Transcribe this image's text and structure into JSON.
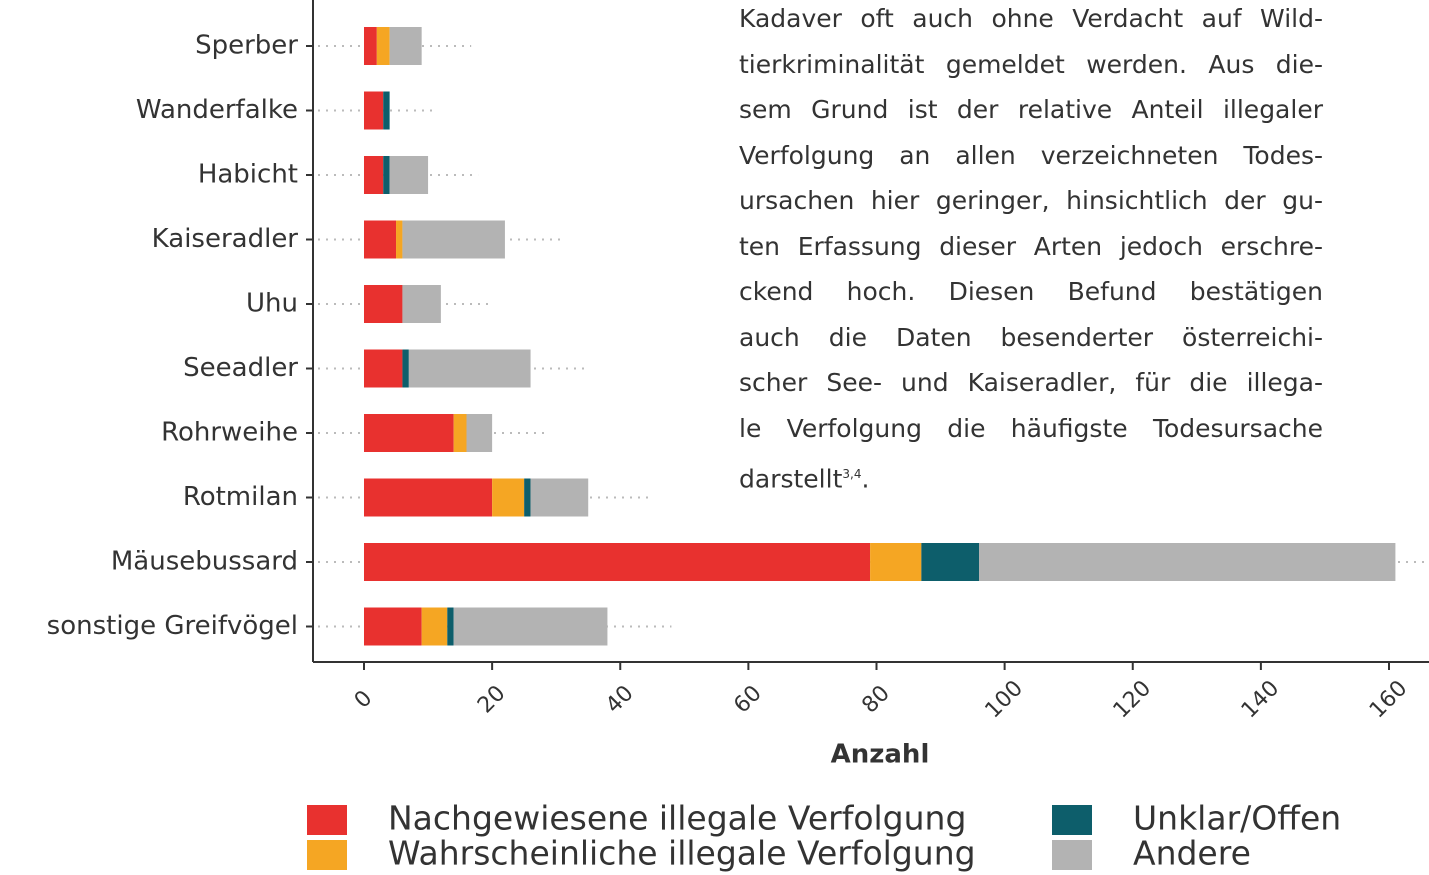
{
  "chart_data": {
    "type": "stacked-barh",
    "categories": [
      "Sperber",
      "Wanderfalke",
      "Habicht",
      "Kaiseradler",
      "Uhu",
      "Seeadler",
      "Rohrweihe",
      "Rotmilan",
      "Mäusebussard",
      "sonstige Greifvögel"
    ],
    "series": [
      {
        "name": "Nachgewiesene illegale Verfolgung",
        "color": "#e8312f",
        "values": [
          2,
          3,
          3,
          5,
          6,
          6,
          14,
          20,
          79,
          9
        ]
      },
      {
        "name": "Wahrscheinliche illegale Verfolgung",
        "color": "#f5a623",
        "values": [
          2,
          0,
          0,
          1,
          0,
          0,
          2,
          5,
          8,
          4
        ]
      },
      {
        "name": "Unklar/Offen",
        "color": "#0d5e6b",
        "values": [
          0,
          1,
          1,
          0,
          0,
          1,
          0,
          1,
          9,
          1
        ]
      },
      {
        "name": "Andere",
        "color": "#b3b3b3",
        "values": [
          5,
          0,
          6,
          16,
          6,
          19,
          4,
          9,
          65,
          24
        ]
      }
    ],
    "xlabel": "Anzahl",
    "xlim": [
      0,
      160
    ],
    "xticks": [
      0,
      20,
      40,
      60,
      80,
      100,
      120,
      140,
      160
    ]
  },
  "text": {
    "lines": [
      "Kadaver oft auch ohne Verdacht auf Wild-",
      "tierkriminalität gemeldet werden. Aus die-",
      "sem Grund ist der relative Anteil illegaler",
      "Verfolgung an allen verzeichneten Todes-",
      "ursachen hier geringer, hinsichtlich der gu-",
      "ten Erfassung dieser Arten jedoch erschre-",
      "ckend hoch. Diesen Befund bestätigen",
      "auch die Daten besenderter österreichi-",
      "scher See- und Kaiseradler, für die illega-",
      "le Verfolgung die häufigste Todesursache"
    ],
    "last_line": {
      "text": "darstellt",
      "sup": "3,4",
      "end": "."
    }
  }
}
